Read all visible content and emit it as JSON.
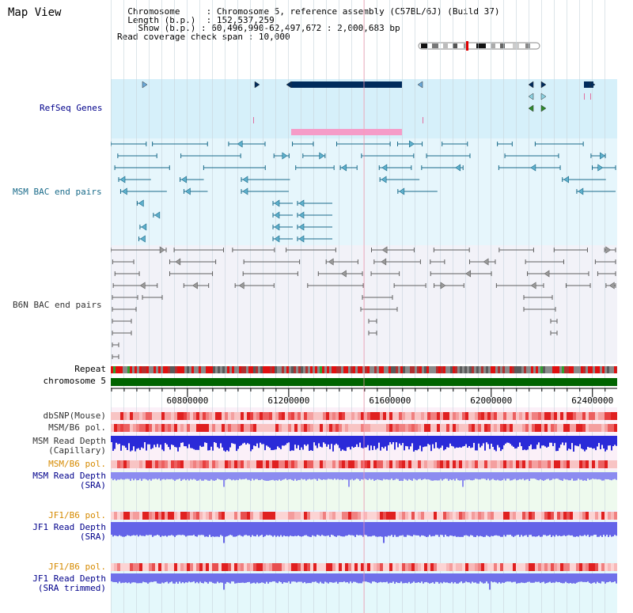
{
  "page": {
    "title": "Map View"
  },
  "info": {
    "chromosome_label": "Chromosome",
    "chromosome_value": "Chromosome 5, reference assembly (C57BL/6J) (Build 37)",
    "length_label": "Length (b.p.)",
    "length_value": "152,537,259",
    "show_label": "Show (b.p.)",
    "show_value": "60,496,990-62,497,672 : 2,000,683 bp",
    "coverage_label": "Read coverage check span",
    "coverage_value": "10,000"
  },
  "tracks": {
    "refseq": "RefSeq Genes",
    "msm_bac": "MSM BAC end pairs",
    "b6n_bac": "B6N BAC end pairs",
    "repeat": "Repeat",
    "chromosome": "chromosome 5",
    "dbsnp": "dbSNP(Mouse)",
    "msm_b6_pol_1": "MSM/B6 pol.",
    "msm_depth_cap_1": "MSM Read Depth",
    "msm_depth_cap_2": "(Capillary)",
    "msm_b6_pol_2": "MSM/B6 pol.",
    "msm_depth_sra_1": "MSM Read Depth",
    "msm_depth_sra_2": "(SRA)",
    "jf1_b6_pol_1": "JF1/B6 pol.",
    "jf1_depth_sra_1": "JF1 Read Depth",
    "jf1_depth_sra_2": "(SRA)",
    "jf1_b6_pol_2": "JF1/B6 pol.",
    "jf1_depth_trim_1": "JF1 Read Depth",
    "jf1_depth_trim_2": "(SRA trimmed)"
  },
  "axis": {
    "range": [
      60496990,
      62497672
    ],
    "ticks": [
      "60800000",
      "61200000",
      "61600000",
      "62000000",
      "62400000"
    ]
  },
  "colors": {
    "refseq_bg": "#d6f0fa",
    "msm_bg": "#e6f6fc",
    "b6n_bg": "#f2f2f8",
    "gene_dark": "#002b5c",
    "gene_pink": "#f59cc8",
    "msm_line": "#1a6b8a",
    "b6n_line": "#606060",
    "chrom_green": "#006400",
    "label_navy": "#00008b",
    "label_orange": "#d68a00"
  }
}
